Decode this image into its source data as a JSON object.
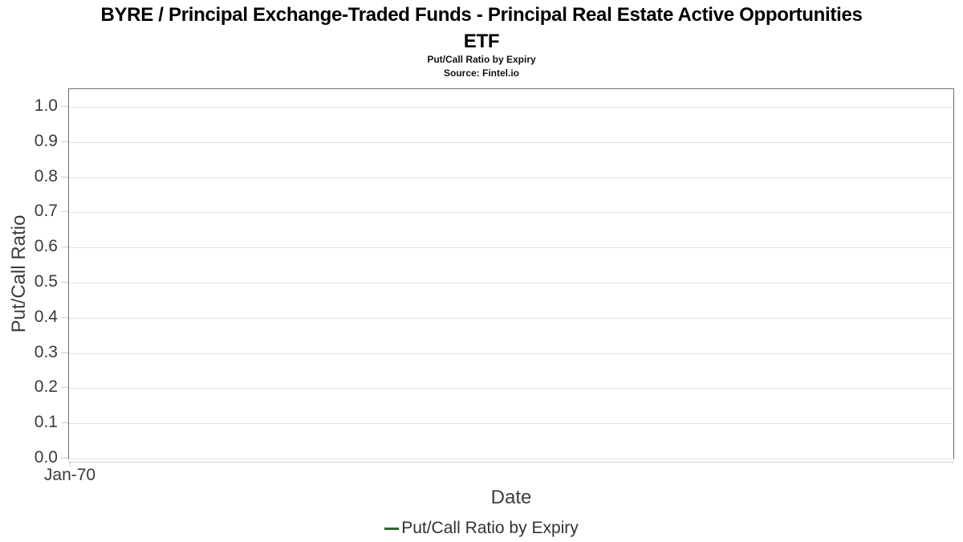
{
  "header": {
    "title_line1": "BYRE / Principal Exchange-Traded Funds - Principal Real Estate Active Opportunities",
    "title_line2": "ETF",
    "subtitle": "Put/Call Ratio by Expiry",
    "source": "Source: Fintel.io"
  },
  "chart_data": {
    "type": "line",
    "title": "BYRE / Principal Exchange-Traded Funds - Principal Real Estate Active Opportunities ETF",
    "subtitle": "Put/Call Ratio by Expiry",
    "source": "Source: Fintel.io",
    "xlabel": "Date",
    "ylabel": "Put/Call Ratio",
    "ylim": [
      0.0,
      1.05
    ],
    "grid": true,
    "legend_position": "bottom-center",
    "x_ticks": [
      {
        "label": "Jan-70",
        "rel_pos": 0.0
      }
    ],
    "y_ticks": [
      {
        "label": "0.0",
        "value": 0.0
      },
      {
        "label": "0.1",
        "value": 0.1
      },
      {
        "label": "0.2",
        "value": 0.2
      },
      {
        "label": "0.3",
        "value": 0.3
      },
      {
        "label": "0.4",
        "value": 0.4
      },
      {
        "label": "0.5",
        "value": 0.5
      },
      {
        "label": "0.6",
        "value": 0.6
      },
      {
        "label": "0.7",
        "value": 0.7
      },
      {
        "label": "0.8",
        "value": 0.8
      },
      {
        "label": "0.9",
        "value": 0.9
      },
      {
        "label": "1.0",
        "value": 1.0
      }
    ],
    "series": [
      {
        "name": "Put/Call Ratio by Expiry",
        "color": "#2e642e",
        "x": [],
        "values": []
      }
    ]
  },
  "colors": {
    "plot_border": "#6e6e6e",
    "gridline": "#e4e4e4",
    "tick": "#cfcfcf",
    "tick_text": "#3a3a3a",
    "axis_title_text": "#3d3d3d",
    "title_text": "#000000",
    "series_green": "#2e642e"
  }
}
